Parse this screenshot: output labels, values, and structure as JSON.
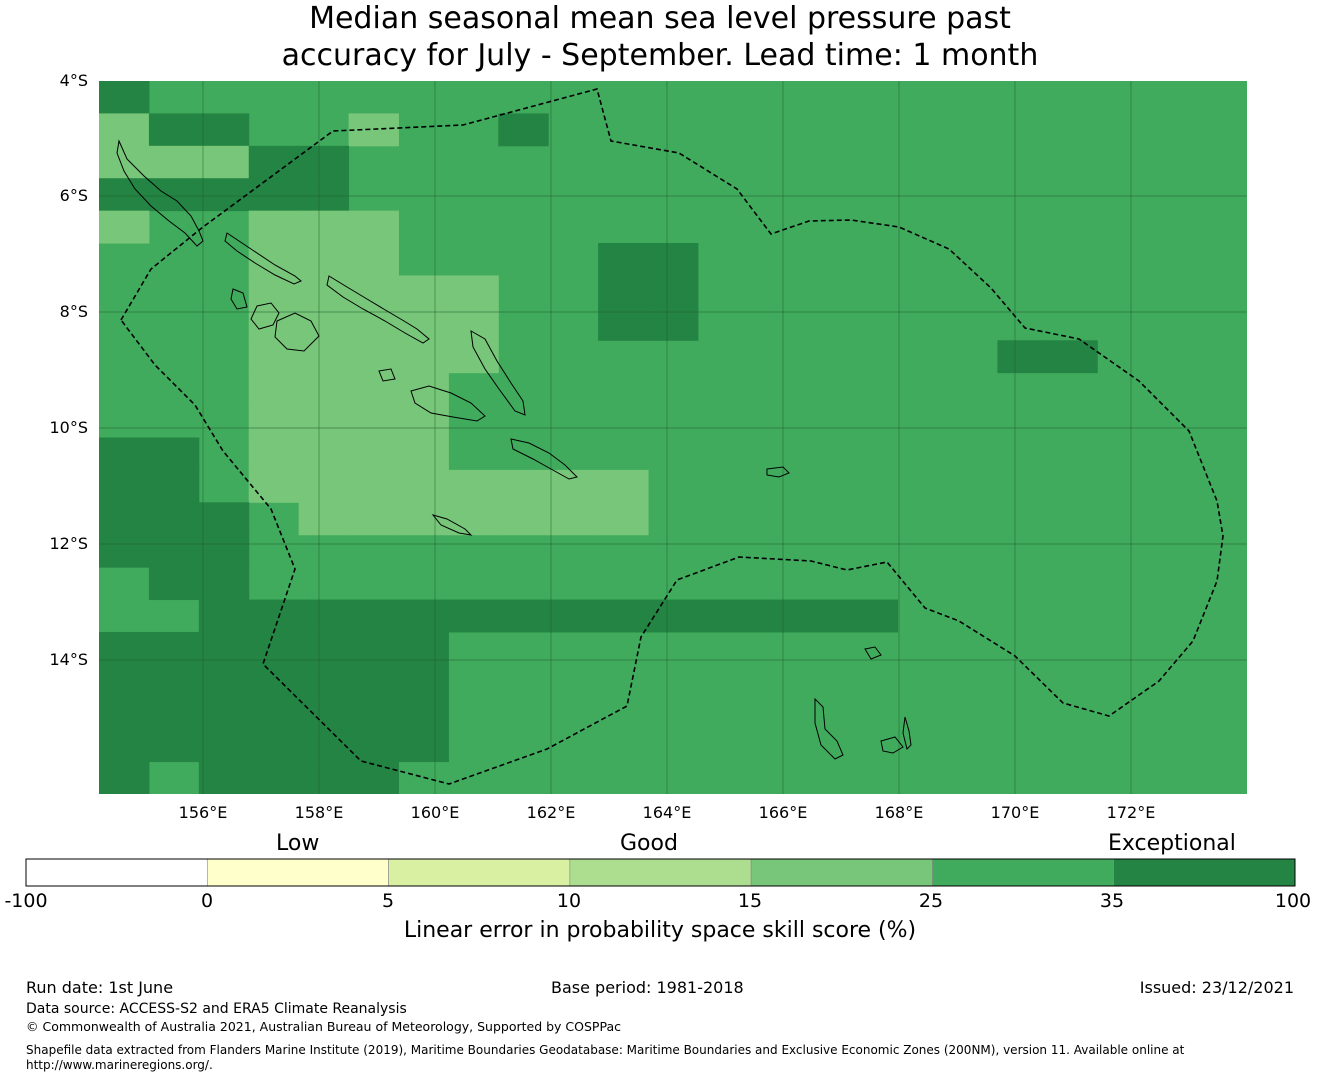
{
  "title": {
    "line1": "Median seasonal mean sea level pressure past",
    "line2": "accuracy for July - September. Lead time: 1 month"
  },
  "map": {
    "lat_ticks": [
      "4°S",
      "6°S",
      "8°S",
      "10°S",
      "12°S",
      "14°S"
    ],
    "lon_ticks": [
      "156°E",
      "158°E",
      "160°E",
      "162°E",
      "164°E",
      "166°E",
      "168°E",
      "170°E",
      "172°E"
    ],
    "grid": {
      "lon_start": 154.2,
      "lat_start": -4.0,
      "step_deg": 0.833,
      "levels": [
        "20000000000000000000000",
        "12200100200000000000000",
        "11133000000000000000000",
        "33322000000000000000000",
        "10011100000000000000000",
        "00011100003300000000000",
        "00011111003300000000000",
        "00011111003300000000000",
        "00011111000000000022000",
        "00011110000000000000000",
        "00011110000000000000000",
        "22011110000000000000000",
        "22011111111000000000000",
        "22201111111000000000000",
        "22200000000000000000000",
        "02200000000000000000000",
        "00222222222222220000000",
        "22222220000000000000000",
        "22222220000000000000000",
        "22222220000000000000000",
        "22222220000000000000000",
        "20222200000000000000000"
      ],
      "level_colors": {
        "0": "#41ab5d",
        "1": "#78c679",
        "2": "#238443",
        "3": "#238443"
      }
    },
    "colors": {
      "ocean_fill": "#41ab5d",
      "gridline": "#1f5e2d",
      "coast": "#000000",
      "eez_boundary": "#000000"
    }
  },
  "colorbar": {
    "category_labels": [
      "Low",
      "Good",
      "Exceptional"
    ],
    "ticks": [
      "-100",
      "0",
      "5",
      "10",
      "15",
      "25",
      "35",
      "100"
    ],
    "colors": [
      "#ffffff",
      "#ffffcc",
      "#d9f0a3",
      "#addd8e",
      "#78c679",
      "#41ab5d",
      "#238443"
    ],
    "label": "Linear error in probability space skill score (%)"
  },
  "footer": {
    "run_date": "Run date: 1st June",
    "base_period": "Base period: 1981-2018",
    "issued": "Issued: 23/12/2021",
    "data_source": "Data source: ACCESS-S2 and ERA5 Climate Reanalysis",
    "copyright": "© Commonwealth of Australia 2021, Australian Bureau of Meteorology, Supported by COSPPac",
    "shapefile_line1": "Shapefile data extracted from Flanders Marine Institute (2019), Maritime Boundaries Geodatabase: Maritime Boundaries and Exclusive Economic Zones (200NM), version 11. Available online at",
    "shapefile_line2": "http://www.marineregions.org/."
  }
}
